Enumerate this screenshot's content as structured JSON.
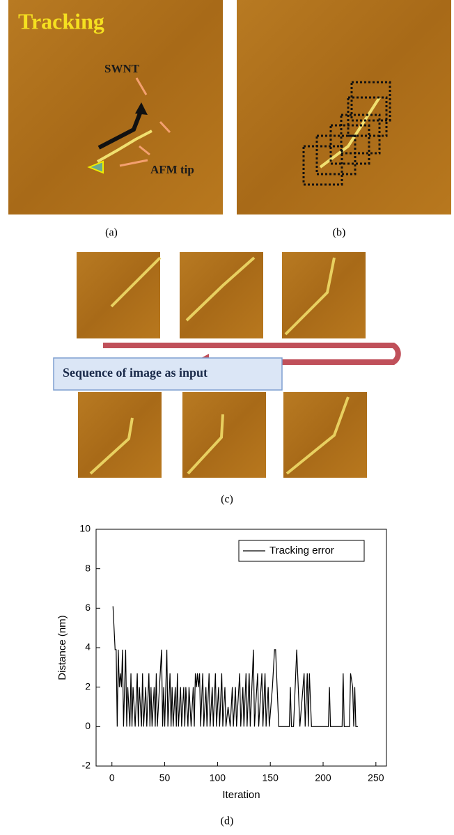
{
  "panels": {
    "a": {
      "title": "Tracking",
      "swnt": "SWNT",
      "tip": "AFM tip",
      "label": "(a)"
    },
    "b": {
      "label": "(b)"
    },
    "c": {
      "caption": "Sequence of image as input",
      "label": "(c)"
    },
    "d": {
      "label": "(d)"
    }
  },
  "chart_data": {
    "type": "line",
    "xlabel": "Iteration",
    "ylabel": "Distance (nm)",
    "x": [
      1,
      3,
      4,
      5,
      6,
      7,
      8,
      9,
      10,
      11,
      12,
      13,
      14,
      15,
      16,
      17,
      18,
      19,
      20,
      22,
      24,
      25,
      26,
      28,
      29,
      30,
      32,
      33,
      35,
      36,
      37,
      38,
      40,
      41,
      42,
      43,
      45,
      47,
      48,
      49,
      50,
      52,
      53,
      55,
      56,
      57,
      58,
      60,
      61,
      62,
      63,
      65,
      66,
      68,
      69,
      70,
      72,
      73,
      75,
      77,
      78,
      79,
      80,
      81,
      82,
      83,
      84,
      86,
      87,
      89,
      90,
      92,
      93,
      95,
      96,
      98,
      99,
      101,
      102,
      104,
      105,
      107,
      108,
      110,
      112,
      114,
      115,
      117,
      118,
      121,
      122,
      124,
      125,
      127,
      128,
      130,
      131,
      134,
      135,
      138,
      139,
      142,
      143,
      145,
      146,
      148,
      149,
      152,
      154,
      155,
      158,
      168,
      169,
      170,
      172,
      175,
      178,
      182,
      183,
      185,
      186,
      187,
      189,
      205,
      206,
      207,
      218,
      219,
      220,
      225,
      226,
      228,
      229,
      230,
      231,
      233
    ],
    "series": [
      {
        "name": "Tracking error",
        "color": "#000000",
        "values": [
          6.1,
          3.9,
          3.9,
          0,
          3.9,
          2,
          2.7,
          2,
          3.9,
          0,
          2,
          3.9,
          0,
          2,
          1,
          0,
          2.7,
          0,
          2,
          0,
          2.7,
          0,
          2,
          0,
          2.7,
          0,
          2,
          0,
          2.7,
          0,
          2,
          0,
          2,
          0,
          2.7,
          0,
          2,
          3.9,
          0,
          2,
          0,
          3.9,
          0,
          2.7,
          0,
          2,
          0,
          2,
          0,
          2.7,
          0,
          2,
          0,
          2,
          0,
          2,
          0,
          2,
          0,
          2,
          0,
          2.7,
          2,
          2.7,
          2,
          2.7,
          0,
          2.7,
          0,
          2,
          0,
          2.7,
          0,
          2,
          0,
          2.7,
          0,
          2,
          0,
          2.7,
          0,
          2,
          0,
          1,
          0,
          2,
          0,
          2,
          0,
          2.7,
          0,
          2,
          0,
          2.7,
          0,
          2.7,
          0,
          3.9,
          0,
          2.7,
          0,
          2.7,
          0,
          2.7,
          0,
          2,
          0,
          2,
          3.9,
          3.9,
          0,
          0,
          2,
          0,
          0,
          3.9,
          0,
          2.7,
          0,
          2.7,
          0,
          2.7,
          0,
          0,
          2,
          0,
          0,
          2.7,
          0,
          0,
          2.7,
          2,
          0,
          2,
          0,
          0
        ]
      }
    ],
    "xlim": [
      -15,
      260
    ],
    "xticks": [
      0,
      50,
      100,
      150,
      200,
      250
    ],
    "ylim": [
      -2,
      10
    ],
    "yticks": [
      -2,
      0,
      2,
      4,
      6,
      8,
      10
    ],
    "grid": false,
    "legend": "upper right"
  }
}
